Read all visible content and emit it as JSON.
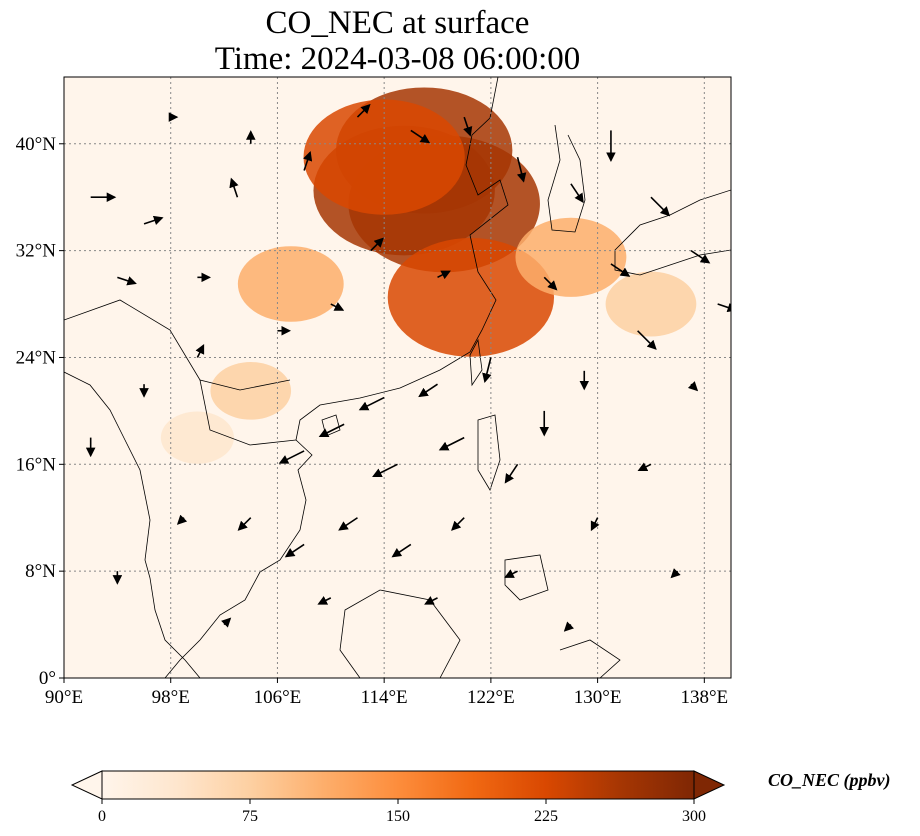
{
  "title": {
    "line1": "CO_NEC at surface",
    "line2": "Time: 2024-03-08 06:00:00"
  },
  "map": {
    "lon_range": [
      90,
      140
    ],
    "lat_range": [
      0,
      45
    ],
    "lon_ticks": [
      {
        "value": 90,
        "label": "90°E"
      },
      {
        "value": 98,
        "label": "98°E"
      },
      {
        "value": 106,
        "label": "106°E"
      },
      {
        "value": 114,
        "label": "114°E"
      },
      {
        "value": 122,
        "label": "122°E"
      },
      {
        "value": 130,
        "label": "130°E"
      },
      {
        "value": 138,
        "label": "138°E"
      }
    ],
    "lat_ticks": [
      {
        "value": 0,
        "label": "0°"
      },
      {
        "value": 8,
        "label": "8°N"
      },
      {
        "value": 16,
        "label": "16°N"
      },
      {
        "value": 24,
        "label": "24°N"
      },
      {
        "value": 32,
        "label": "32°N"
      },
      {
        "value": 40,
        "label": "40°N"
      }
    ],
    "gridline_color": "#888888",
    "ocean_fill": "#fff5eb"
  },
  "colorbar": {
    "label": "CO_NEC (ppbv)",
    "range": [
      0,
      300
    ],
    "ticks": [
      {
        "value": 0,
        "label": "0"
      },
      {
        "value": 75,
        "label": "75"
      },
      {
        "value": 150,
        "label": "150"
      },
      {
        "value": 225,
        "label": "225"
      },
      {
        "value": 300,
        "label": "300"
      }
    ],
    "colors": [
      "#fff5eb",
      "#fee6ce",
      "#fdd0a2",
      "#fdae6b",
      "#fd8d3c",
      "#f16913",
      "#d94801",
      "#a63603",
      "#7f2704"
    ]
  },
  "plumes": [
    {
      "lon": 115.5,
      "lat": 36.5,
      "value": 260
    },
    {
      "lon": 118.5,
      "lat": 35.5,
      "value": 280
    },
    {
      "lon": 120.5,
      "lat": 28.5,
      "value": 230
    },
    {
      "lon": 117.0,
      "lat": 39.5,
      "value": 250
    },
    {
      "lon": 114.0,
      "lat": 39.0,
      "value": 220
    },
    {
      "lon": 128.0,
      "lat": 31.5,
      "value": 120
    },
    {
      "lon": 107.0,
      "lat": 29.5,
      "value": 110
    },
    {
      "lon": 104.0,
      "lat": 21.5,
      "value": 60
    },
    {
      "lon": 100.0,
      "lat": 18.0,
      "value": 45
    },
    {
      "lon": 134.0,
      "lat": 28.0,
      "value": 80
    }
  ],
  "wind_vectors": [
    {
      "lon": 92,
      "lat": 36,
      "u": 4,
      "v": 0
    },
    {
      "lon": 94,
      "lat": 30,
      "u": 3,
      "v": -1
    },
    {
      "lon": 96,
      "lat": 34,
      "u": 3,
      "v": 1
    },
    {
      "lon": 100,
      "lat": 30,
      "u": 2,
      "v": 0
    },
    {
      "lon": 103,
      "lat": 36,
      "u": -1,
      "v": 3
    },
    {
      "lon": 108,
      "lat": 38,
      "u": 1,
      "v": 3
    },
    {
      "lon": 112,
      "lat": 42,
      "u": 2,
      "v": 2
    },
    {
      "lon": 116,
      "lat": 41,
      "u": 3,
      "v": -2
    },
    {
      "lon": 120,
      "lat": 42,
      "u": 1,
      "v": -3
    },
    {
      "lon": 124,
      "lat": 39,
      "u": 1,
      "v": -4
    },
    {
      "lon": 128,
      "lat": 37,
      "u": 2,
      "v": -3
    },
    {
      "lon": 131,
      "lat": 41,
      "u": 0,
      "v": -5
    },
    {
      "lon": 134,
      "lat": 36,
      "u": 3,
      "v": -3
    },
    {
      "lon": 137,
      "lat": 32,
      "u": 3,
      "v": -2
    },
    {
      "lon": 139,
      "lat": 28,
      "u": 3,
      "v": -1
    },
    {
      "lon": 133,
      "lat": 26,
      "u": 3,
      "v": -3
    },
    {
      "lon": 129,
      "lat": 23,
      "u": 0,
      "v": -3
    },
    {
      "lon": 126,
      "lat": 20,
      "u": 0,
      "v": -4
    },
    {
      "lon": 122,
      "lat": 24,
      "u": -1,
      "v": -4
    },
    {
      "lon": 118,
      "lat": 22,
      "u": -3,
      "v": -2
    },
    {
      "lon": 114,
      "lat": 21,
      "u": -4,
      "v": -2
    },
    {
      "lon": 111,
      "lat": 19,
      "u": -4,
      "v": -2
    },
    {
      "lon": 108,
      "lat": 17,
      "u": -4,
      "v": -2
    },
    {
      "lon": 115,
      "lat": 16,
      "u": -4,
      "v": -2
    },
    {
      "lon": 120,
      "lat": 18,
      "u": -4,
      "v": -2
    },
    {
      "lon": 124,
      "lat": 16,
      "u": -2,
      "v": -3
    },
    {
      "lon": 112,
      "lat": 12,
      "u": -3,
      "v": -2
    },
    {
      "lon": 108,
      "lat": 10,
      "u": -3,
      "v": -2
    },
    {
      "lon": 104,
      "lat": 12,
      "u": -2,
      "v": -2
    },
    {
      "lon": 116,
      "lat": 10,
      "u": -3,
      "v": -2
    },
    {
      "lon": 120,
      "lat": 12,
      "u": -2,
      "v": -2
    },
    {
      "lon": 110,
      "lat": 6,
      "u": -2,
      "v": -1
    },
    {
      "lon": 118,
      "lat": 6,
      "u": -2,
      "v": -1
    },
    {
      "lon": 124,
      "lat": 8,
      "u": -2,
      "v": -1
    },
    {
      "lon": 130,
      "lat": 12,
      "u": -1,
      "v": -2
    },
    {
      "lon": 134,
      "lat": 16,
      "u": -2,
      "v": -1
    },
    {
      "lon": 136,
      "lat": 8,
      "u": -1,
      "v": -1
    },
    {
      "lon": 128,
      "lat": 4,
      "u": -1,
      "v": -1
    },
    {
      "lon": 102,
      "lat": 4,
      "u": 1,
      "v": 1
    },
    {
      "lon": 94,
      "lat": 8,
      "u": 0,
      "v": -2
    },
    {
      "lon": 92,
      "lat": 18,
      "u": 0,
      "v": -3
    },
    {
      "lon": 96,
      "lat": 22,
      "u": 0,
      "v": -2
    },
    {
      "lon": 100,
      "lat": 24,
      "u": 1,
      "v": 2
    },
    {
      "lon": 106,
      "lat": 26,
      "u": 2,
      "v": 0
    },
    {
      "lon": 110,
      "lat": 28,
      "u": 2,
      "v": -1
    },
    {
      "lon": 113,
      "lat": 32,
      "u": 2,
      "v": 2
    },
    {
      "lon": 118,
      "lat": 30,
      "u": 2,
      "v": 1
    },
    {
      "lon": 126,
      "lat": 30,
      "u": 2,
      "v": -2
    },
    {
      "lon": 131,
      "lat": 31,
      "u": 3,
      "v": -2
    },
    {
      "lon": 137,
      "lat": 22,
      "u": 1,
      "v": -1
    },
    {
      "lon": 99,
      "lat": 12,
      "u": -1,
      "v": -1
    },
    {
      "lon": 104,
      "lat": 40,
      "u": 0,
      "v": 2
    },
    {
      "lon": 98,
      "lat": 42,
      "u": 1,
      "v": 0
    }
  ]
}
